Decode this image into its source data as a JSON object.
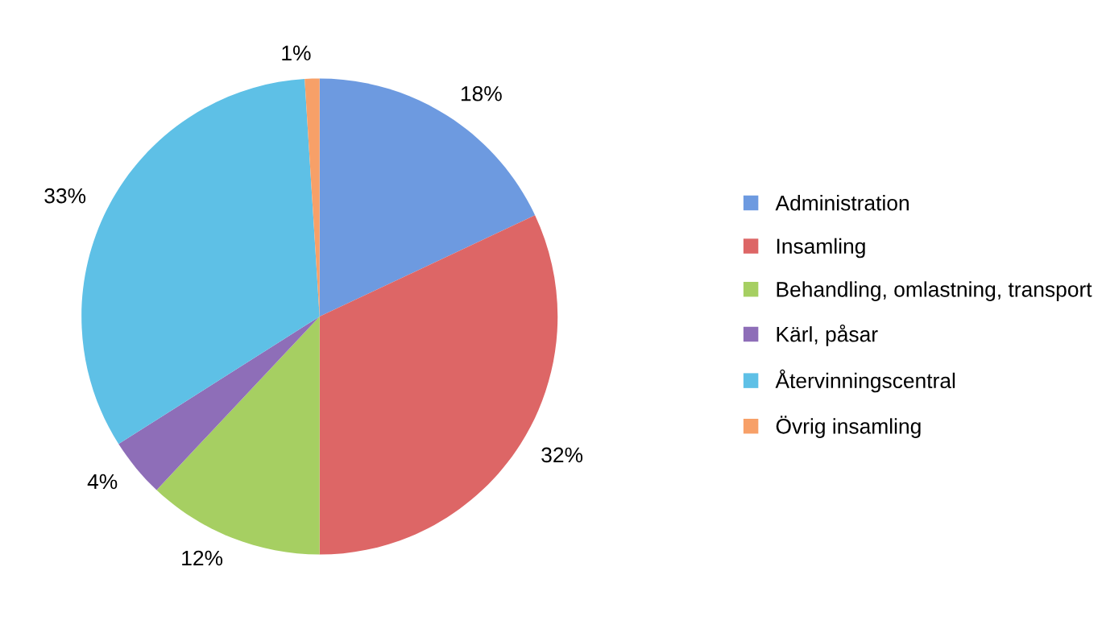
{
  "chart_data": {
    "type": "pie",
    "categories": [
      "Administration",
      "Insamling",
      "Behandling, omlastning, transport",
      "Kärl, påsar",
      "Återvinningscentral",
      "Övrig insamling"
    ],
    "values": [
      18,
      32,
      12,
      4,
      33,
      1
    ],
    "colors": [
      "#6d9ae0",
      "#dd6666",
      "#a6cf62",
      "#8e6eb8",
      "#5ec0e6",
      "#f7a068"
    ],
    "value_labels": [
      "18%",
      "32%",
      "12%",
      "4%",
      "33%",
      "1%"
    ],
    "legend": "right"
  }
}
